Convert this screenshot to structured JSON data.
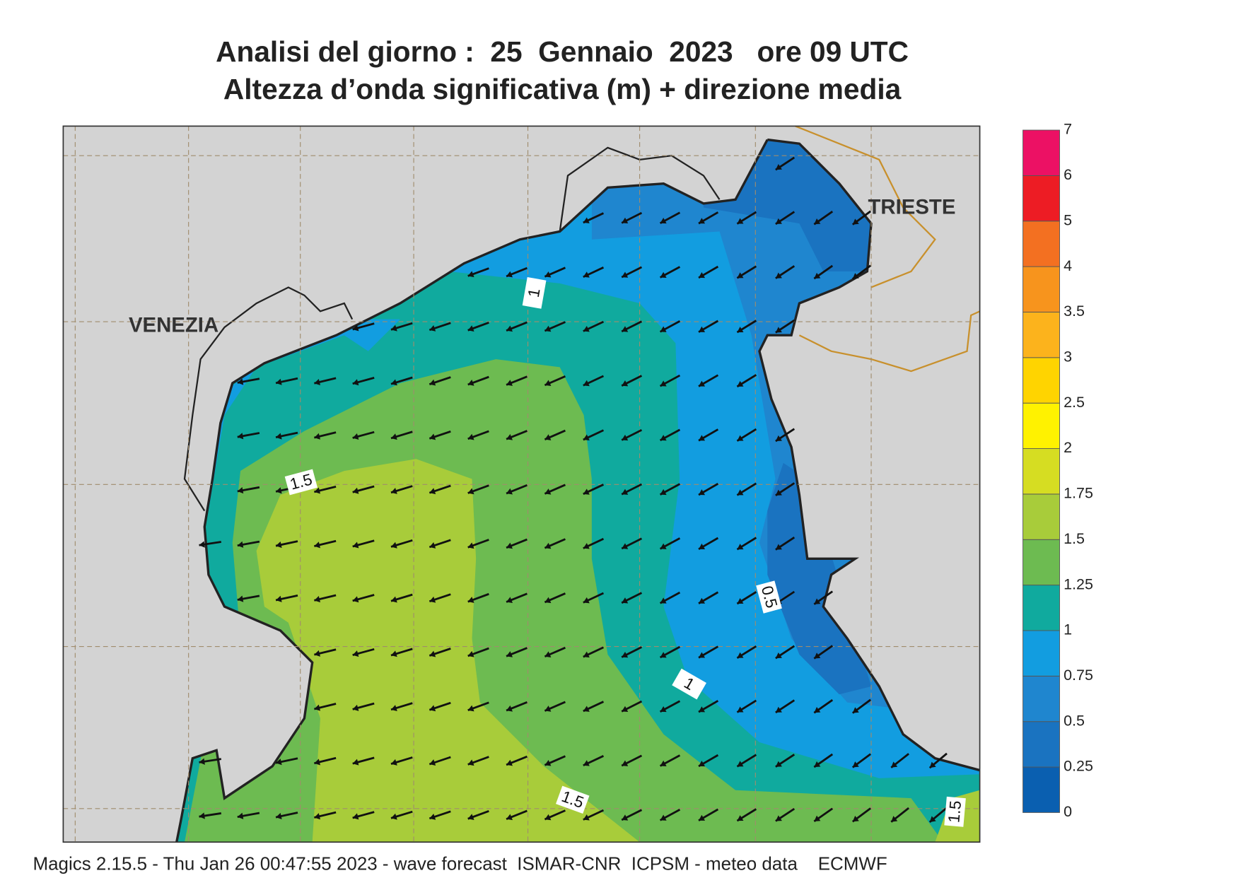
{
  "title": [
    "Analisi del giorno :  25  Gennaio  2023   ore 09 UTC",
    "Altezza d’onda significativa (m) + direzione media"
  ],
  "places": [
    "VENEZIA",
    "TRIESTE"
  ],
  "contour_labels": [
    "1",
    "1.5",
    "0.5",
    "1",
    "1.5",
    "1.5"
  ],
  "colorbar": {
    "levels": [
      0,
      0.25,
      0.5,
      0.75,
      1,
      1.25,
      1.5,
      1.75,
      2,
      2.5,
      3,
      3.5,
      4,
      5,
      6,
      7
    ],
    "colors": [
      "#0a5fb0",
      "#1a73c0",
      "#1f86cf",
      "#129de0",
      "#10aa9e",
      "#6dbb51",
      "#a8cc3a",
      "#d6dd22",
      "#fff200",
      "#ffd400",
      "#fcb31c",
      "#f7941d",
      "#f37021",
      "#ed1c24",
      "#ec1164"
    ]
  },
  "footer": "Magics 2.15.5 - Thu Jan 26 00:47:55 2023 - wave forecast  ISMAR-CNR  ICPSM - meteo data    ECMWF"
}
